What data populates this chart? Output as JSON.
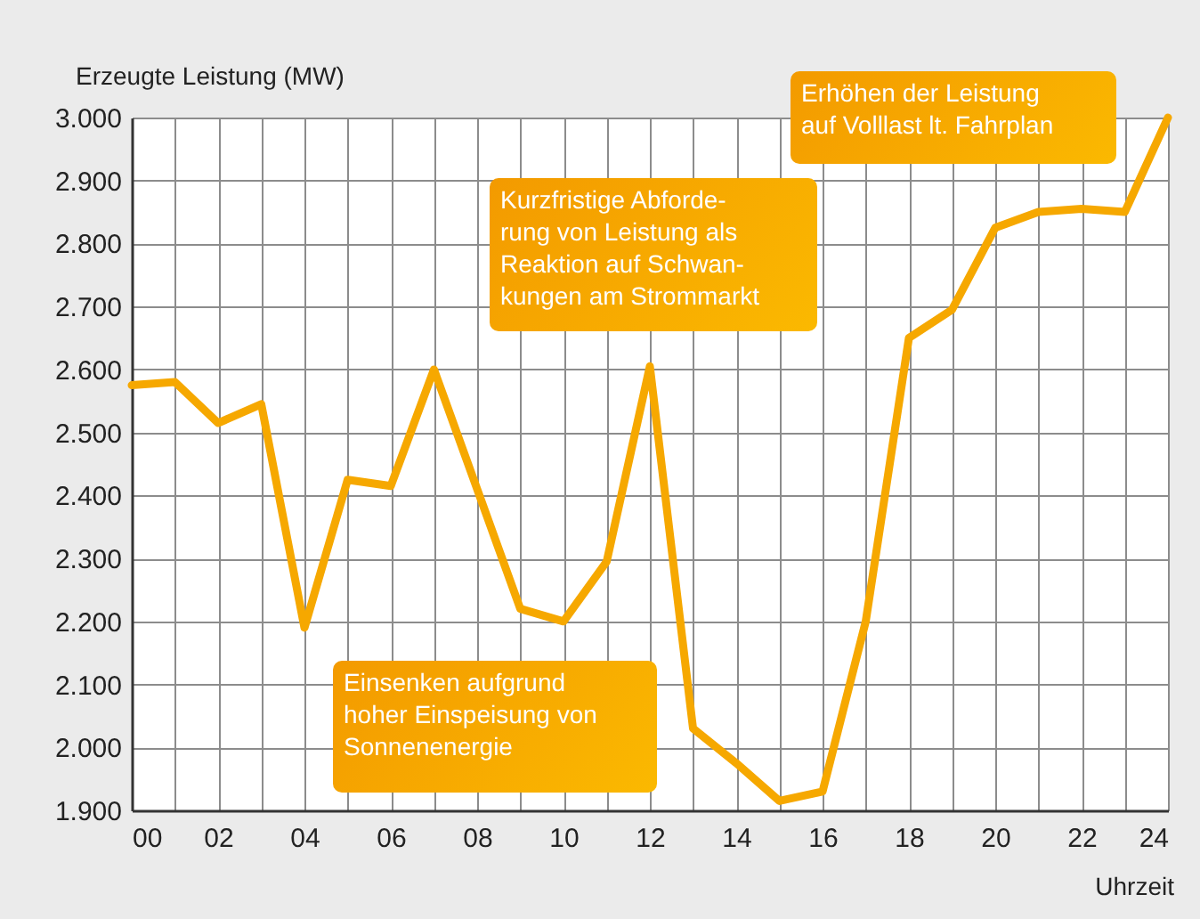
{
  "chart_data": {
    "type": "line",
    "xlabel": "Uhrzeit",
    "ylabel": "Erzeugte Leistung (MW)",
    "x": [
      0,
      1,
      2,
      3,
      4,
      5,
      6,
      7,
      8,
      9,
      10,
      11,
      12,
      13,
      14,
      15,
      16,
      17,
      18,
      19,
      20,
      21,
      22,
      23,
      24
    ],
    "series": [
      {
        "color": "#f6a800",
        "values": [
          2575,
          2580,
          2515,
          2545,
          2190,
          2425,
          2415,
          2600,
          2410,
          2220,
          2200,
          2295,
          2605,
          2030,
          1975,
          1915,
          1930,
          2200,
          2650,
          2695,
          2825,
          2850,
          2855,
          2850,
          3000
        ]
      }
    ],
    "xlim": [
      0,
      24
    ],
    "ylim": [
      1900,
      3000
    ],
    "xticks": [
      {
        "value": 0,
        "label": "00"
      },
      {
        "value": 1,
        "label": null
      },
      {
        "value": 2,
        "label": "02"
      },
      {
        "value": 3,
        "label": null
      },
      {
        "value": 4,
        "label": "04"
      },
      {
        "value": 5,
        "label": null
      },
      {
        "value": 6,
        "label": "06"
      },
      {
        "value": 7,
        "label": null
      },
      {
        "value": 8,
        "label": "08"
      },
      {
        "value": 9,
        "label": null
      },
      {
        "value": 10,
        "label": "10"
      },
      {
        "value": 11,
        "label": null
      },
      {
        "value": 12,
        "label": "12"
      },
      {
        "value": 13,
        "label": null
      },
      {
        "value": 14,
        "label": "14"
      },
      {
        "value": 15,
        "label": null
      },
      {
        "value": 16,
        "label": "16"
      },
      {
        "value": 17,
        "label": null
      },
      {
        "value": 18,
        "label": "18"
      },
      {
        "value": 19,
        "label": null
      },
      {
        "value": 20,
        "label": "20"
      },
      {
        "value": 21,
        "label": null
      },
      {
        "value": 22,
        "label": "22"
      },
      {
        "value": 23,
        "label": null
      },
      {
        "value": 24,
        "label": "24"
      }
    ],
    "yticks": [
      {
        "value": 1900,
        "label": "1.900"
      },
      {
        "value": 2000,
        "label": "2.000"
      },
      {
        "value": 2100,
        "label": "2.100"
      },
      {
        "value": 2200,
        "label": "2.200"
      },
      {
        "value": 2300,
        "label": "2.300"
      },
      {
        "value": 2400,
        "label": "2.400"
      },
      {
        "value": 2500,
        "label": "2.500"
      },
      {
        "value": 2600,
        "label": "2.600"
      },
      {
        "value": 2700,
        "label": "2.700"
      },
      {
        "value": 2800,
        "label": "2.800"
      },
      {
        "value": 2900,
        "label": "2.900"
      },
      {
        "value": 3000,
        "label": "3.000"
      }
    ],
    "grid": true,
    "marker": "none",
    "line_style": "solid",
    "annotations": [
      "Kurzfristige Abforde-\nrung von Leistung als\nReaktion auf Schwan-\nkungen am Strommarkt",
      "Einsenken aufgrund\nhoher Einspeisung von\nSonnenenergie",
      "Erhöhen der Leistung\nauf Volllast lt. Fahrplan"
    ]
  }
}
